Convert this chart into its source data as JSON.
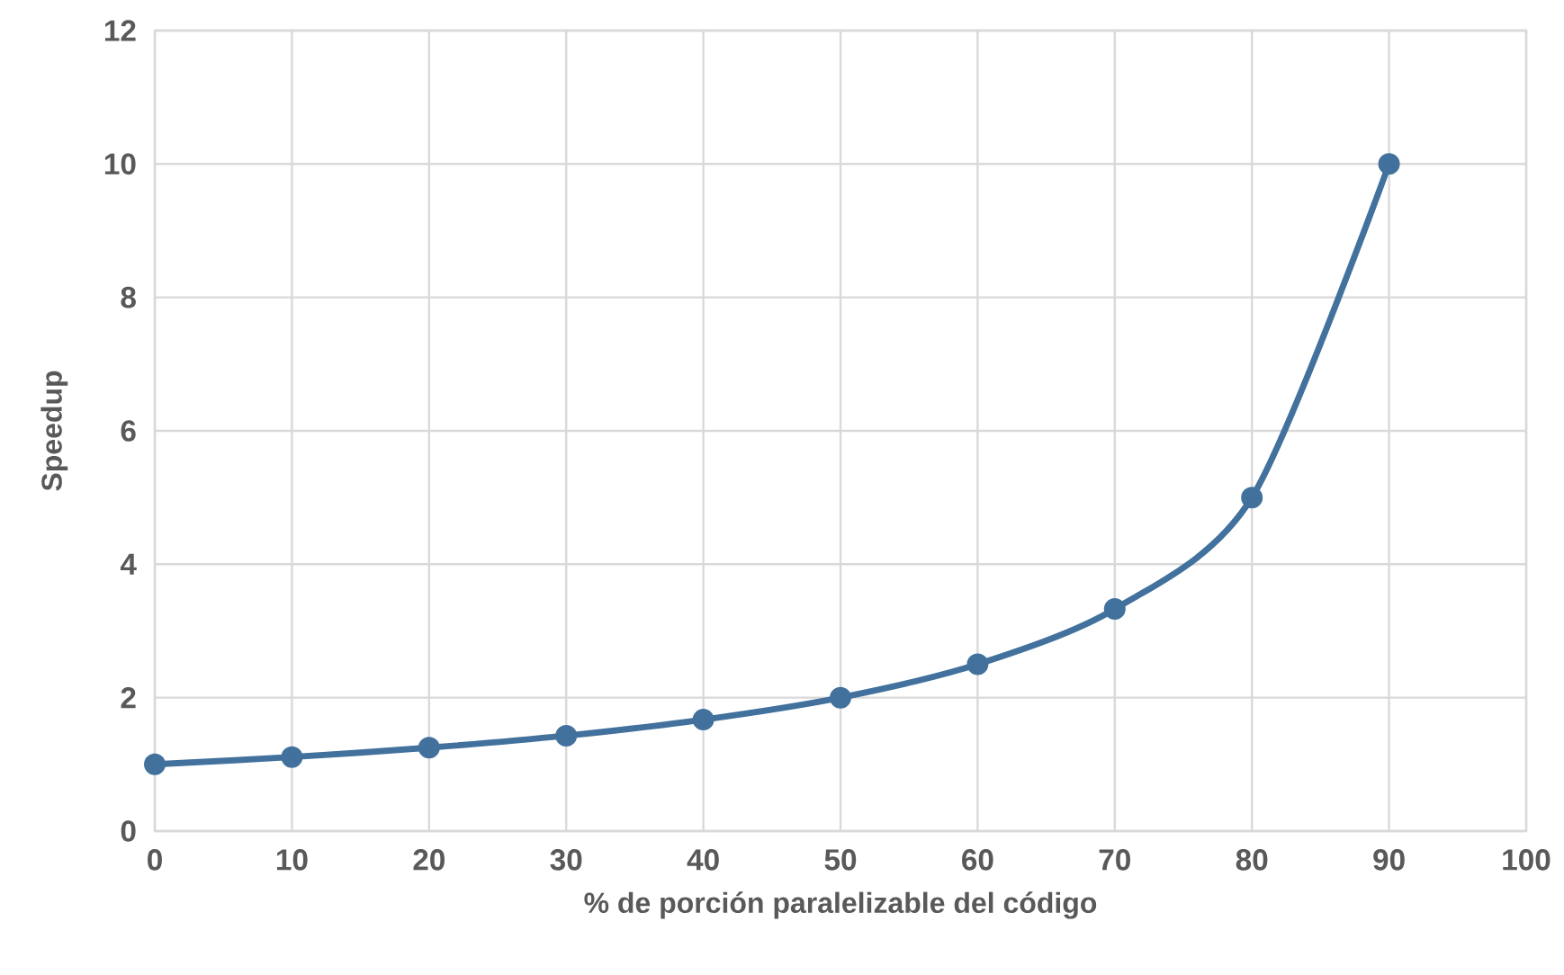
{
  "chart_data": {
    "type": "line",
    "xlabel": "% de porción paralelizable del código",
    "ylabel": "Speedup",
    "x": [
      0,
      10,
      20,
      30,
      40,
      50,
      60,
      70,
      80,
      90
    ],
    "series": [
      {
        "color": "#41719c",
        "values": [
          1,
          1.11,
          1.25,
          1.43,
          1.67,
          2,
          2.5,
          3.33,
          5,
          10
        ]
      }
    ],
    "xlim": [
      0,
      100
    ],
    "xticks": [
      0,
      10,
      20,
      30,
      40,
      50,
      60,
      70,
      80,
      90,
      100
    ],
    "ylim": [
      0,
      12
    ],
    "yticks": [
      0,
      2,
      4,
      6,
      8,
      10,
      12
    ],
    "grid": true,
    "marker": "circle",
    "line_style": "solid"
  }
}
